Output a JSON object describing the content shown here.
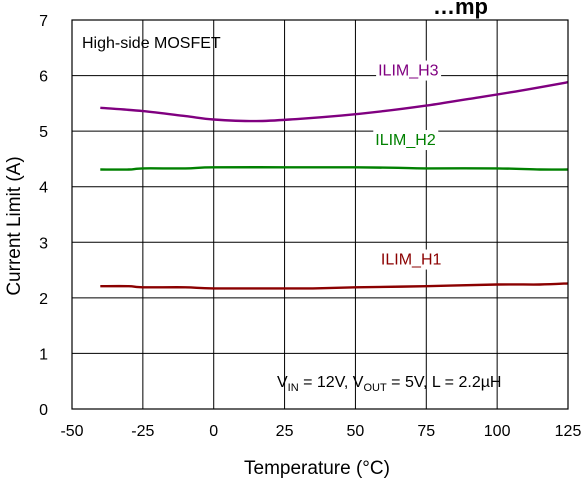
{
  "chart_data": {
    "type": "line",
    "title": "…mp",
    "xlabel": "Temperature (°C)",
    "ylabel": "Current Limit (A)",
    "xlim": [
      -50,
      125
    ],
    "ylim": [
      0,
      7
    ],
    "xticks": [
      "-50",
      "-25",
      "0",
      "25",
      "50",
      "75",
      "100",
      "125"
    ],
    "yticks": [
      "0",
      "1",
      "2",
      "3",
      "4",
      "5",
      "6",
      "7"
    ],
    "grid": true,
    "annotations": {
      "top_left": "High-side MOSFET",
      "conditions": {
        "vin_sym": "V",
        "vin_sub": "IN",
        "vin_val": " = 12V, ",
        "vout_sym": "V",
        "vout_sub": "OUT",
        "vout_val": " = 5V, L = 2.2µH"
      }
    },
    "series": [
      {
        "name": "ILIM_H3",
        "color": "#800080",
        "x": [
          -40,
          -25,
          -10,
          0,
          15,
          30,
          45,
          60,
          75,
          90,
          105,
          125
        ],
        "y": [
          5.42,
          5.36,
          5.27,
          5.21,
          5.18,
          5.22,
          5.28,
          5.36,
          5.46,
          5.58,
          5.7,
          5.88
        ],
        "label_pos": {
          "x": 58,
          "y": 6.0
        }
      },
      {
        "name": "ILIM_H2",
        "color": "#008000",
        "x": [
          -40,
          -30,
          -25,
          -10,
          0,
          25,
          50,
          65,
          75,
          100,
          115,
          125
        ],
        "y": [
          4.31,
          4.31,
          4.33,
          4.33,
          4.35,
          4.35,
          4.35,
          4.34,
          4.33,
          4.33,
          4.31,
          4.31
        ],
        "label_pos": {
          "x": 57,
          "y": 4.75
        }
      },
      {
        "name": "ILIM_H1",
        "color": "#8b0000",
        "x": [
          -40,
          -30,
          -25,
          -10,
          0,
          25,
          35,
          50,
          75,
          100,
          115,
          125
        ],
        "y": [
          2.21,
          2.21,
          2.19,
          2.19,
          2.17,
          2.17,
          2.17,
          2.19,
          2.21,
          2.24,
          2.24,
          2.26
        ],
        "label_pos": {
          "x": 59,
          "y": 2.6
        }
      }
    ]
  }
}
